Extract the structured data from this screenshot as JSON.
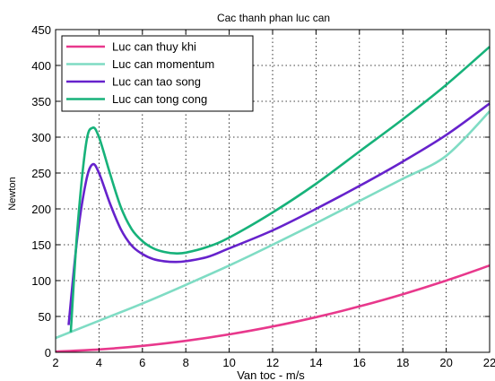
{
  "chart_data": {
    "type": "line",
    "title": "Cac thanh phan luc can",
    "xlabel": "Van toc - m/s",
    "ylabel": "Newton",
    "xlim": [
      2,
      22
    ],
    "ylim": [
      0,
      450
    ],
    "xticks": [
      2,
      4,
      6,
      8,
      10,
      12,
      14,
      16,
      18,
      20,
      22
    ],
    "yticks": [
      0,
      50,
      100,
      150,
      200,
      250,
      300,
      350,
      400,
      450
    ],
    "grid": true,
    "legend_position": "top-left",
    "series": [
      {
        "name": "Luc can thuy khi",
        "color": "#e8388c",
        "x": [
          2,
          4,
          6,
          8,
          10,
          12,
          14,
          16,
          18,
          20,
          22
        ],
        "y": [
          1,
          4,
          9,
          16,
          25,
          36,
          49,
          64,
          81,
          100,
          121
        ]
      },
      {
        "name": "Luc can momentum",
        "color": "#7fdcc4",
        "x": [
          2,
          4,
          6,
          8,
          10,
          12,
          14,
          16,
          18,
          20,
          22
        ],
        "y": [
          20,
          44,
          68,
          94,
          121,
          150,
          180,
          211,
          242,
          274,
          336
        ]
      },
      {
        "name": "Luc can tao song",
        "color": "#6622cc",
        "x": [
          2.6,
          3.0,
          3.4,
          3.7,
          4.0,
          4.5,
          5.0,
          5.5,
          6.0,
          6.5,
          7.0,
          7.5,
          8.0,
          9.0,
          10.0,
          12.0,
          14.0,
          16.0,
          18.0,
          20.0,
          22.0
        ],
        "y": [
          38,
          160,
          238,
          262,
          250,
          208,
          172,
          149,
          137,
          130,
          127,
          126,
          127,
          133,
          145,
          170,
          200,
          232,
          266,
          303,
          347
        ]
      },
      {
        "name": "Luc can tong cong",
        "color": "#17b27a",
        "x": [
          2.7,
          3.0,
          3.4,
          3.7,
          4.0,
          4.5,
          5.0,
          5.5,
          6.0,
          6.5,
          7.0,
          7.5,
          8.0,
          9.0,
          10.0,
          12.0,
          14.0,
          16.0,
          18.0,
          20.0,
          22.0
        ],
        "y": [
          28,
          170,
          290,
          313,
          300,
          250,
          203,
          172,
          155,
          145,
          140,
          138,
          139,
          147,
          160,
          195,
          235,
          280,
          325,
          373,
          426
        ]
      }
    ]
  }
}
